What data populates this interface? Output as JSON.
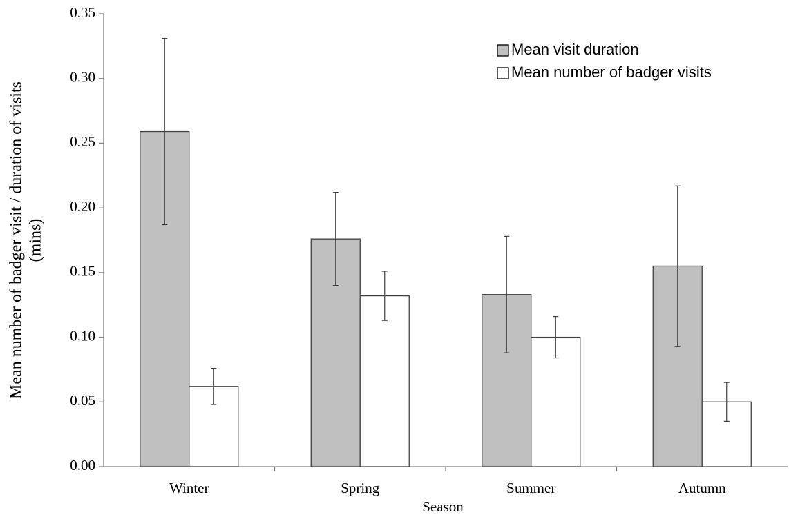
{
  "chart_data": {
    "type": "bar",
    "x_label": "Season",
    "y_label": [
      "Mean number of badger visit / duration of visits",
      "(mins)"
    ],
    "categories": [
      "Winter",
      "Spring",
      "Summer",
      "Autumn"
    ],
    "series": [
      {
        "name": "Mean visit duration",
        "color": "#c0c0c0",
        "values": [
          0.259,
          0.176,
          0.133,
          0.155
        ],
        "errors": [
          0.072,
          0.036,
          0.045,
          0.062
        ]
      },
      {
        "name": "Mean number of badger visits",
        "color": "#ffffff",
        "values": [
          0.062,
          0.132,
          0.1,
          0.05
        ],
        "errors": [
          0.014,
          0.019,
          0.016,
          0.015
        ]
      }
    ],
    "ylim": [
      0,
      0.35
    ],
    "yticks": [
      {
        "value": 0,
        "label": "0.00"
      },
      {
        "value": 0.05,
        "label": "0.05"
      },
      {
        "value": 0.1,
        "label": "0.10"
      },
      {
        "value": 0.15,
        "label": "0.15"
      },
      {
        "value": 0.2,
        "label": "0.20"
      },
      {
        "value": 0.25,
        "label": "0.25"
      },
      {
        "value": 0.3,
        "label": "0.30"
      },
      {
        "value": 0.35,
        "label": "0.35"
      }
    ],
    "grid": false,
    "legend": "top-right"
  }
}
